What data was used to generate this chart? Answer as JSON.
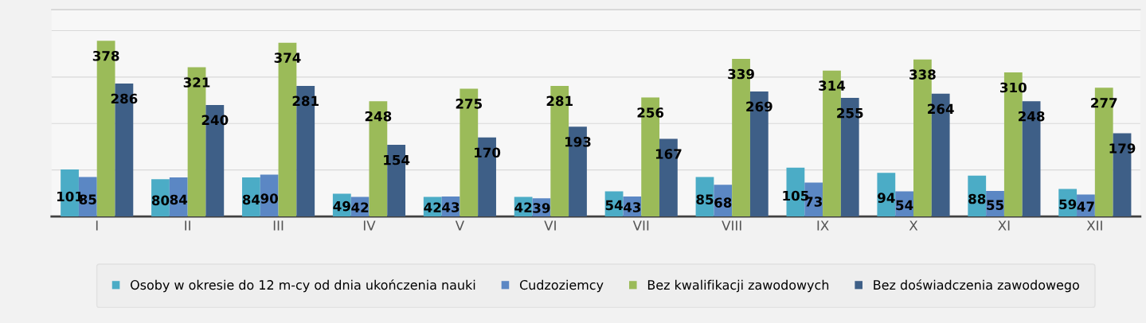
{
  "chart_data": {
    "type": "bar",
    "categories": [
      "I",
      "II",
      "III",
      "IV",
      "V",
      "VI",
      "VII",
      "VIII",
      "IX",
      "X",
      "XI",
      "XII"
    ],
    "series": [
      {
        "name": "Osoby w okresie do 12 m-cy od dnia ukończenia nauki",
        "color": "#4bacc6",
        "values": [
          101,
          80,
          84,
          49,
          42,
          42,
          54,
          85,
          105,
          94,
          88,
          59
        ]
      },
      {
        "name": "Cudzoziemcy",
        "color": "#5b87c4",
        "values": [
          85,
          84,
          90,
          42,
          43,
          39,
          43,
          68,
          73,
          54,
          55,
          47
        ]
      },
      {
        "name": "Bez kwalifikacji zawodowych",
        "color": "#9bbb59",
        "values": [
          378,
          321,
          374,
          248,
          275,
          281,
          256,
          339,
          314,
          338,
          310,
          277
        ]
      },
      {
        "name": "Bez doświadczenia zawodowego",
        "color": "#3e5f87",
        "values": [
          286,
          240,
          281,
          154,
          170,
          193,
          167,
          269,
          255,
          264,
          248,
          179
        ]
      }
    ],
    "ylim": [
      0,
      445
    ],
    "yticks": [
      {
        "value": 0,
        "label": null
      },
      {
        "value": 100,
        "label": null
      },
      {
        "value": 200,
        "label": null
      },
      {
        "value": 300,
        "label": null
      },
      {
        "value": 400,
        "label": null
      }
    ],
    "tick_labels": "x",
    "grid": "y",
    "data_labels": true,
    "legend": "bottom"
  }
}
